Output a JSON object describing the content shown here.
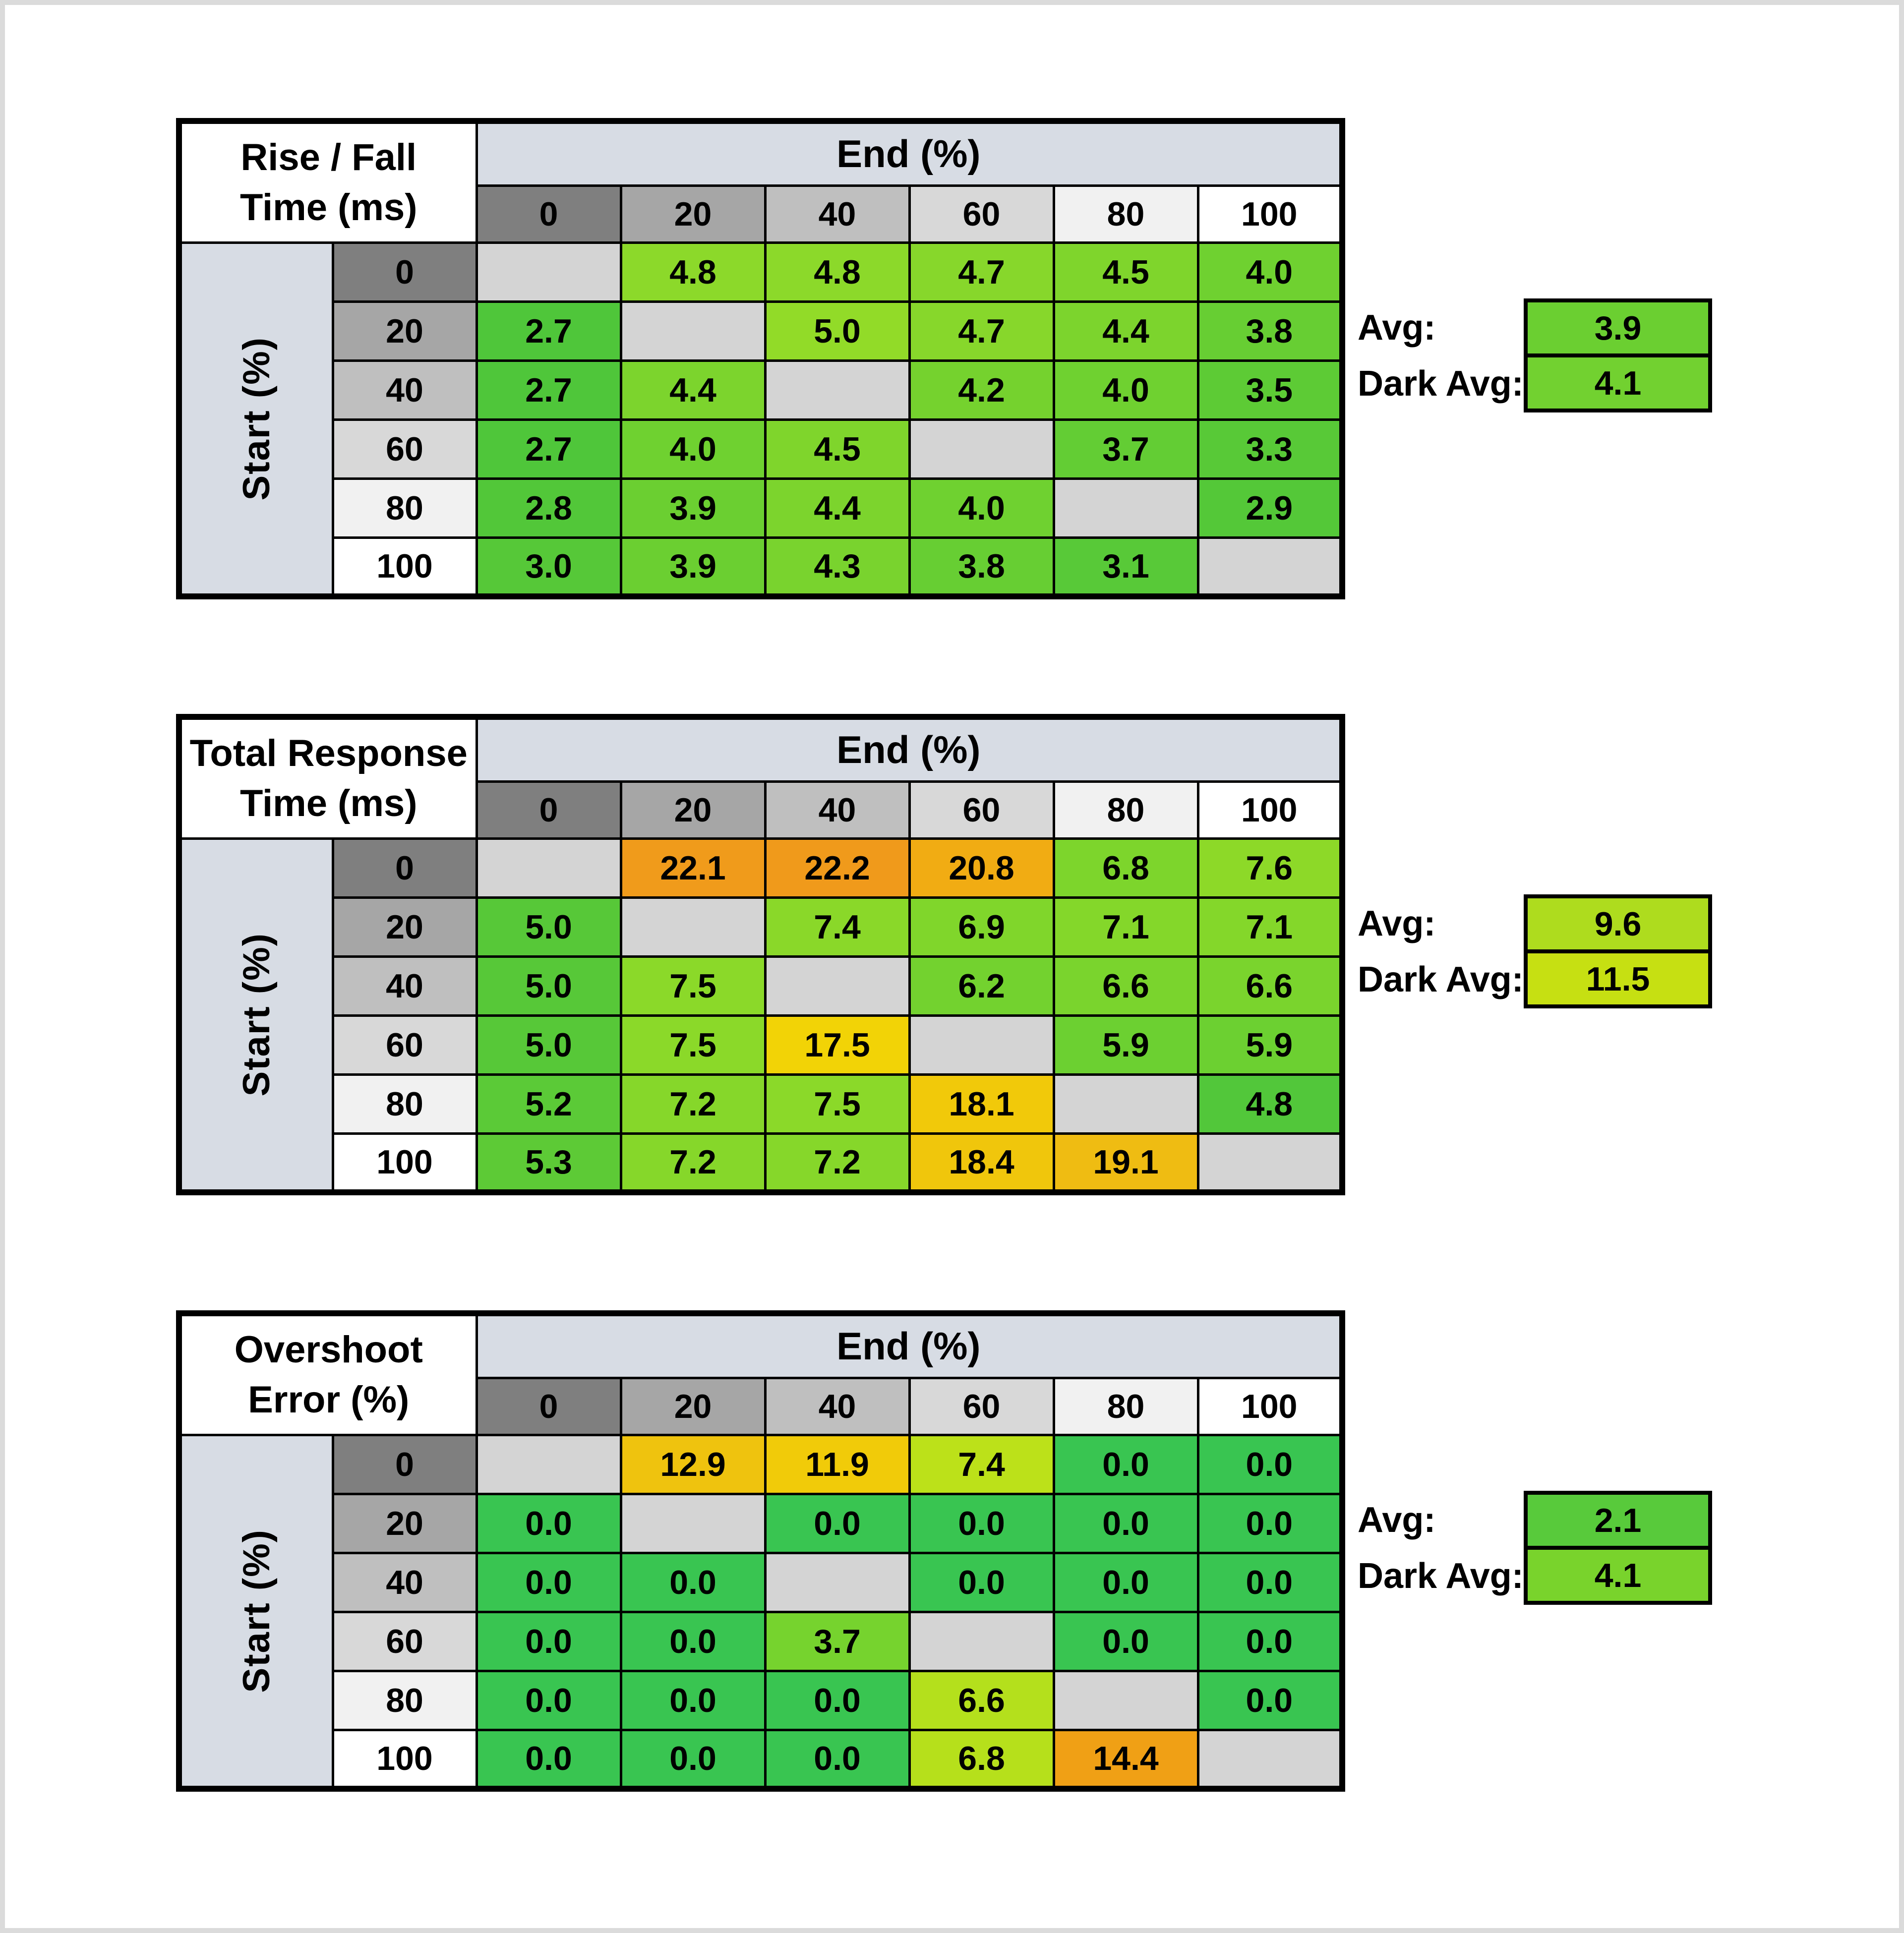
{
  "palette": {
    "page_bg": "#FFFFFF",
    "frame": "#DBDBDB",
    "grid_border": "#000000",
    "axis_band": "#D7DCE4",
    "diag_blank": "#D4D4D4",
    "header_grays": [
      "#7F7F7F",
      "#A6A6A6",
      "#BFBFBF",
      "#D8D8D8",
      "#F1F1F1",
      "#FFFFFF"
    ]
  },
  "chart_data": [
    {
      "type": "heatmap",
      "title": "Rise / Fall Time (ms)",
      "title_lines": [
        "Rise / Fall",
        "Time (ms)"
      ],
      "xlabel": "End (%)",
      "ylabel": "Start (%)",
      "x": [
        "0",
        "20",
        "40",
        "60",
        "80",
        "100"
      ],
      "y": [
        "0",
        "20",
        "40",
        "60",
        "80",
        "100"
      ],
      "values": [
        [
          null,
          4.8,
          4.8,
          4.7,
          4.5,
          4.0
        ],
        [
          2.7,
          null,
          5.0,
          4.7,
          4.4,
          3.8
        ],
        [
          2.7,
          4.4,
          null,
          4.2,
          4.0,
          3.5
        ],
        [
          2.7,
          4.0,
          4.5,
          null,
          3.7,
          3.3
        ],
        [
          2.8,
          3.9,
          4.4,
          4.0,
          null,
          2.9
        ],
        [
          3.0,
          3.9,
          4.3,
          3.8,
          3.1,
          null
        ]
      ],
      "colors": [
        [
          null,
          "#8CD92A",
          "#8CD92A",
          "#87D72B",
          "#7FD52C",
          "#6FD130"
        ],
        [
          "#4FC63A",
          null,
          "#92DB28",
          "#87D72B",
          "#7CD42D",
          "#67CE33"
        ],
        [
          "#4FC63A",
          "#7CD42D",
          null,
          "#75D22E",
          "#6FD130",
          "#5DCB35"
        ],
        [
          "#4FC63A",
          "#6FD130",
          "#7FD52C",
          null,
          "#63CD34",
          "#58C937"
        ],
        [
          "#52C739",
          "#6BCF31",
          "#7CD42D",
          "#6FD130",
          null,
          "#54C838"
        ],
        [
          "#56C838",
          "#6BCF31",
          "#79D32E",
          "#67CE33",
          "#58C938",
          null
        ]
      ],
      "avg": {
        "label": "Avg:",
        "value": "3.9",
        "color": "#6BCF31"
      },
      "dark_avg": {
        "label": "Dark Avg:",
        "value": "4.1",
        "color": "#72D130"
      }
    },
    {
      "type": "heatmap",
      "title": "Total Response Time (ms)",
      "title_lines": [
        "Total Response",
        "Time (ms)"
      ],
      "xlabel": "End (%)",
      "ylabel": "Start (%)",
      "x": [
        "0",
        "20",
        "40",
        "60",
        "80",
        "100"
      ],
      "y": [
        "0",
        "20",
        "40",
        "60",
        "80",
        "100"
      ],
      "values": [
        [
          null,
          22.1,
          22.2,
          20.8,
          6.8,
          7.6
        ],
        [
          5.0,
          null,
          7.4,
          6.9,
          7.1,
          7.1
        ],
        [
          5.0,
          7.5,
          null,
          6.2,
          6.6,
          6.6
        ],
        [
          5.0,
          7.5,
          17.5,
          null,
          5.9,
          5.9
        ],
        [
          5.2,
          7.2,
          7.5,
          18.1,
          null,
          4.8
        ],
        [
          5.3,
          7.2,
          7.2,
          18.4,
          19.1,
          null
        ]
      ],
      "colors": [
        [
          null,
          "#F09B1B",
          "#F09A1B",
          "#F1AC13",
          "#7DD52C",
          "#8DD928"
        ],
        [
          "#57C838",
          null,
          "#8AD829",
          "#80D62B",
          "#84D72A",
          "#84D72A"
        ],
        [
          "#57C838",
          "#8BD929",
          null,
          "#73D22F",
          "#7AD42D",
          "#7AD42D"
        ],
        [
          "#57C838",
          "#8BD929",
          "#F2D306",
          null,
          "#6CD031",
          "#6CD031"
        ],
        [
          "#5BCA37",
          "#86D72A",
          "#8BD929",
          "#F1C90A",
          null,
          "#52C73A"
        ],
        [
          "#5DCA36",
          "#86D72A",
          "#86D72A",
          "#F0C60C",
          "#EFBC12",
          null
        ]
      ],
      "avg": {
        "label": "Avg:",
        "value": "9.6",
        "color": "#AEDC1E"
      },
      "dark_avg": {
        "label": "Dark Avg:",
        "value": "11.5",
        "color": "#C6E012"
      }
    },
    {
      "type": "heatmap",
      "title": "Overshoot Error (%)",
      "title_lines": [
        "Overshoot",
        "Error (%)"
      ],
      "xlabel": "End (%)",
      "ylabel": "Start (%)",
      "x": [
        "0",
        "20",
        "40",
        "60",
        "80",
        "100"
      ],
      "y": [
        "0",
        "20",
        "40",
        "60",
        "80",
        "100"
      ],
      "values": [
        [
          null,
          12.9,
          11.9,
          7.4,
          0.0,
          0.0
        ],
        [
          0.0,
          null,
          0.0,
          0.0,
          0.0,
          0.0
        ],
        [
          0.0,
          0.0,
          null,
          0.0,
          0.0,
          0.0
        ],
        [
          0.0,
          0.0,
          3.7,
          null,
          0.0,
          0.0
        ],
        [
          0.0,
          0.0,
          0.0,
          6.6,
          null,
          0.0
        ],
        [
          0.0,
          0.0,
          0.0,
          6.8,
          14.4,
          null
        ]
      ],
      "colors": [
        [
          null,
          "#EFC30E",
          "#F1CB09",
          "#BCE119",
          "#39C551",
          "#39C551"
        ],
        [
          "#39C551",
          null,
          "#39C551",
          "#39C551",
          "#39C551",
          "#39C551"
        ],
        [
          "#39C551",
          "#39C551",
          null,
          "#39C551",
          "#39C551",
          "#39C551"
        ],
        [
          "#39C551",
          "#39C551",
          "#76D32E",
          null,
          "#39C551",
          "#39C551"
        ],
        [
          "#39C551",
          "#39C551",
          "#39C551",
          "#B4E01C",
          null,
          "#39C551"
        ],
        [
          "#39C551",
          "#39C551",
          "#39C551",
          "#B6E01B",
          "#F0A015",
          null
        ]
      ],
      "avg": {
        "label": "Avg:",
        "value": "2.1",
        "color": "#58CA3B"
      },
      "dark_avg": {
        "label": "Dark Avg:",
        "value": "4.1",
        "color": "#79D32C"
      }
    }
  ]
}
